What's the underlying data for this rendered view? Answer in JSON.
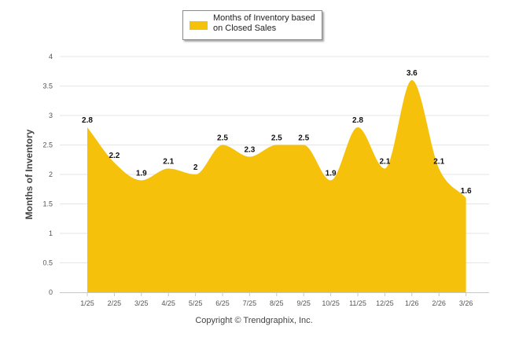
{
  "chart_data": {
    "type": "area",
    "title": "",
    "categories": [
      "1/25",
      "2/25",
      "3/25",
      "4/25",
      "5/25",
      "6/25",
      "7/25",
      "8/25",
      "9/25",
      "10/25",
      "11/25",
      "12/25",
      "1/26",
      "2/26",
      "3/26"
    ],
    "series": [
      {
        "name": "Months of Inventory based on Closed Sales",
        "values": [
          2.8,
          2.2,
          1.9,
          2.1,
          2.0,
          2.5,
          2.3,
          2.5,
          2.5,
          1.9,
          2.8,
          2.1,
          3.6,
          2.1,
          1.6
        ],
        "labels": [
          "2.8",
          "2.2",
          "1.9",
          "2.1",
          "2",
          "2.5",
          "2.3",
          "2.5",
          "2.5",
          "1.9",
          "2.8",
          "2.1",
          "3.6",
          "2.1",
          "1.6"
        ],
        "color": "#f5c10a"
      }
    ],
    "xlabel": "",
    "ylabel": "Months of Inventory",
    "ylim": [
      0,
      4
    ],
    "yticks": [
      "0",
      "0.5",
      "1",
      "1.5",
      "2",
      "2.5",
      "3",
      "3.5",
      "4"
    ],
    "grid": true,
    "legend": "top-center"
  },
  "legend": {
    "label": "Months of Inventory based on Closed Sales"
  },
  "footer": {
    "copyright": "Copyright © Trendgraphix, Inc."
  },
  "colors": {
    "area": "#f5c10a",
    "grid": "#e6e6e6"
  }
}
